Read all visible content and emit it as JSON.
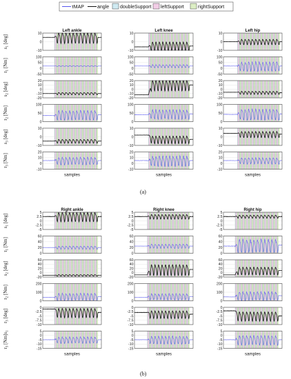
{
  "legend": [
    {
      "label": "τMAP",
      "kind": "line",
      "color": "#5555ee"
    },
    {
      "label": "angle",
      "kind": "line",
      "color": "#111111"
    },
    {
      "label": "doubleSupport",
      "kind": "box",
      "color": "#cfeaf2"
    },
    {
      "label": "leftSupport",
      "kind": "box",
      "color": "#f2cde6"
    },
    {
      "label": "rightSupport",
      "kind": "box",
      "color": "#dceec4"
    }
  ],
  "colors": {
    "tau": "#5555ee",
    "angle": "#111111",
    "doubleSupport": "#b3dcea",
    "leftSupport": "#eec0de",
    "rightSupport": "#c9e6aa",
    "grid": "#d9d9d9"
  },
  "chart_data": [
    {
      "type": "line",
      "subfigure": "(a)",
      "xlabel": "samples",
      "phase_order": [
        "doubleSupport",
        "leftSupport",
        "doubleSupport",
        "rightSupport"
      ],
      "columns": [
        {
          "title": "Left ankle",
          "active_start": 0.2,
          "active_end": 0.94,
          "cycles": 12
        },
        {
          "title": "Left knee",
          "active_start": 0.24,
          "active_end": 0.94,
          "cycles": 12
        },
        {
          "title": "Left hip",
          "active_start": 0.24,
          "active_end": 0.96,
          "cycles": 12
        }
      ],
      "rows": [
        {
          "ylabel_sym": "s",
          "ylabel_sub": "1",
          "ylabel_unit": "[deg]",
          "series": "angle",
          "yticks": [
            [
              "10",
              "0",
              "-10"
            ],
            [
              "10",
              "0",
              "-10"
            ],
            [
              "10",
              "0",
              "-10"
            ]
          ],
          "ylims": [
            [
              -10,
              10
            ],
            [
              -10,
              10
            ],
            [
              -10,
              10
            ]
          ],
          "base": [
            5,
            -5,
            0
          ],
          "amp": [
            7,
            6,
            3.5
          ],
          "pre": [
            5,
            -6,
            0
          ]
        },
        {
          "ylabel_sym": "τ",
          "ylabel_sub": "1",
          "ylabel_unit": "[Nm]",
          "series": "tau",
          "yticks": [
            [
              "100",
              "50",
              "0",
              "-50"
            ],
            [
              "100",
              "50",
              "0",
              "-50"
            ],
            [
              "100",
              "50",
              "0",
              "-50"
            ]
          ],
          "ylims": [
            [
              -50,
              100
            ],
            [
              -50,
              100
            ],
            [
              -50,
              100
            ]
          ],
          "base": [
            20,
            20,
            20
          ],
          "amp": [
            5,
            15,
            45
          ],
          "pre": [
            20,
            20,
            20
          ]
        },
        {
          "ylabel_sym": "s",
          "ylabel_sub": "2",
          "ylabel_unit": "[deg]",
          "series": "angle",
          "yticks": [
            [
              "20",
              "10",
              "0",
              "-10",
              "-20"
            ],
            [
              "20",
              "10",
              "0",
              "-10",
              "-20"
            ],
            [
              "20",
              "10",
              "0",
              "-10",
              "-20"
            ]
          ],
          "ylims": [
            [
              -20,
              20
            ],
            [
              -20,
              20
            ],
            [
              -20,
              20
            ]
          ],
          "base": [
            -10,
            10,
            -8
          ],
          "amp": [
            3,
            14,
            4
          ],
          "pre": [
            -10,
            -13,
            -7
          ]
        },
        {
          "ylabel_sym": "τ",
          "ylabel_sub": "2",
          "ylabel_unit": "[Nm]",
          "series": "tau",
          "yticks": [
            [
              "100",
              "50",
              "0"
            ],
            [
              "100",
              "50",
              "0"
            ],
            [
              "100",
              "50",
              "0"
            ]
          ],
          "ylims": [
            [
              0,
              100
            ],
            [
              0,
              100
            ],
            [
              0,
              100
            ]
          ],
          "base": [
            40,
            45,
            45
          ],
          "amp": [
            30,
            30,
            35
          ],
          "pre": [
            35,
            40,
            42
          ]
        },
        {
          "ylabel_sym": "s",
          "ylabel_sub": "3",
          "ylabel_unit": "[deg]",
          "series": "angle",
          "yticks": [
            [
              "10",
              "0",
              "-10"
            ],
            [
              "10",
              "0",
              "-10"
            ],
            [
              "10",
              "0",
              "-10"
            ]
          ],
          "ylims": [
            [
              -10,
              10
            ],
            [
              -10,
              10
            ],
            [
              -10,
              10
            ]
          ],
          "base": [
            -5,
            -3,
            3
          ],
          "amp": [
            2.5,
            5,
            4
          ],
          "pre": [
            -5,
            2,
            4
          ]
        },
        {
          "ylabel_sym": "τ",
          "ylabel_sub": "3",
          "ylabel_unit": "[Nm]",
          "series": "tau",
          "yticks": [
            [
              "20",
              "10",
              "0",
              "-10"
            ],
            [
              "20",
              "10",
              "0",
              "-10"
            ],
            [
              "20",
              "10",
              "0",
              "-10"
            ]
          ],
          "ylims": [
            [
              -10,
              20
            ],
            [
              -10,
              20
            ],
            [
              -10,
              20
            ]
          ],
          "base": [
            5,
            5,
            5
          ],
          "amp": [
            7,
            10,
            6
          ],
          "pre": [
            5,
            5,
            5
          ]
        }
      ]
    },
    {
      "type": "line",
      "subfigure": "(b)",
      "xlabel": "samples",
      "phase_order": [
        "doubleSupport",
        "leftSupport",
        "doubleSupport",
        "rightSupport"
      ],
      "columns": [
        {
          "title": "Right ankle",
          "active_start": 0.2,
          "active_end": 0.94,
          "cycles": 12
        },
        {
          "title": "Right knee",
          "active_start": 0.22,
          "active_end": 0.94,
          "cycles": 12
        },
        {
          "title": "Right hip",
          "active_start": 0.2,
          "active_end": 0.94,
          "cycles": 12
        }
      ],
      "rows": [
        {
          "ylabel_sym": "s",
          "ylabel_sub": "1",
          "ylabel_unit": "[deg]",
          "series": "angle",
          "yticks": [
            [
              "5",
              "2.5",
              "0",
              "-2.5",
              "-5"
            ],
            [
              "5",
              "2.5",
              "0",
              "-2.5",
              "-5"
            ],
            [
              "5",
              "2.5",
              "0",
              "-2.5",
              "-5"
            ]
          ],
          "ylims": [
            [
              -5,
              5
            ],
            [
              -5,
              5
            ],
            [
              -5,
              5
            ]
          ],
          "base": [
            2.5,
            2.5,
            2.5
          ],
          "amp": [
            3,
            1.5,
            1
          ],
          "pre": [
            2.5,
            2.5,
            2.5
          ]
        },
        {
          "ylabel_sym": "τ",
          "ylabel_sub": "1",
          "ylabel_unit": "[Nm]",
          "series": "tau",
          "yticks": [
            [
              "60",
              "40",
              "20",
              "0"
            ],
            [
              "60",
              "40",
              "20",
              "0"
            ],
            [
              "60",
              "40",
              "20",
              "0"
            ]
          ],
          "ylims": [
            [
              0,
              60
            ],
            [
              0,
              60
            ],
            [
              0,
              60
            ]
          ],
          "base": [
            20,
            25,
            28
          ],
          "amp": [
            6,
            8,
            25
          ],
          "pre": [
            20,
            25,
            25
          ]
        },
        {
          "ylabel_sym": "s",
          "ylabel_sub": "2",
          "ylabel_unit": "[deg]",
          "series": "angle",
          "yticks": [
            [
              "60",
              "40",
              "20",
              "0",
              "-20"
            ],
            [
              "60",
              "40",
              "20",
              "0",
              "-20"
            ],
            [
              "60",
              "40",
              "20",
              "0",
              "-20"
            ]
          ],
          "ylims": [
            [
              -20,
              60
            ],
            [
              -20,
              60
            ],
            [
              -20,
              60
            ]
          ],
          "base": [
            -12,
            15,
            10
          ],
          "amp": [
            4,
            28,
            20
          ],
          "pre": [
            -12,
            -10,
            -10
          ]
        },
        {
          "ylabel_sym": "τ",
          "ylabel_sub": "2",
          "ylabel_unit": "[Nm]",
          "series": "tau",
          "yticks": [
            [
              "200",
              "100",
              "0"
            ],
            [
              "200",
              "100",
              "0"
            ],
            [
              "200",
              "100",
              "0"
            ]
          ],
          "ylims": [
            [
              0,
              200
            ],
            [
              0,
              200
            ],
            [
              0,
              200
            ]
          ],
          "base": [
            50,
            50,
            60
          ],
          "amp": [
            45,
            40,
            55
          ],
          "pre": [
            40,
            40,
            45
          ]
        },
        {
          "ylabel_sym": "τ",
          "ylabel_sub": "3",
          "ylabel_unit": "[deg]",
          "series": "angle",
          "yticks": [
            [
              "0",
              "-2.5",
              "-5",
              "-7.5",
              "-10"
            ],
            [
              "0",
              "-2.5",
              "-5",
              "-7.5",
              "-10"
            ],
            [
              "0",
              "-2.5",
              "-5",
              "-7.5",
              "-10"
            ]
          ],
          "ylims": [
            [
              -10,
              0
            ],
            [
              -10,
              0
            ],
            [
              -10,
              0
            ]
          ],
          "base": [
            -3,
            -4,
            -5
          ],
          "amp": [
            3,
            2.5,
            3
          ],
          "pre": [
            -1,
            -3,
            -2
          ]
        },
        {
          "ylabel_sym": "τ",
          "ylabel_sub": "3",
          "ylabel_unit": "[Nm]s",
          "ylabel_extra": "1",
          "series": "tau",
          "yticks": [
            [
              "5",
              "0",
              "-5",
              "-10",
              "-15"
            ],
            [
              "5",
              "0",
              "-5",
              "-10",
              "-15"
            ],
            [
              "5",
              "0",
              "-5",
              "-10",
              "-15"
            ]
          ],
          "ylims": [
            [
              -15,
              5
            ],
            [
              -15,
              5
            ],
            [
              -15,
              5
            ]
          ],
          "base": [
            -5,
            -5,
            -5
          ],
          "amp": [
            4,
            5,
            6
          ],
          "pre": [
            -5,
            -5,
            -5
          ]
        }
      ]
    }
  ]
}
